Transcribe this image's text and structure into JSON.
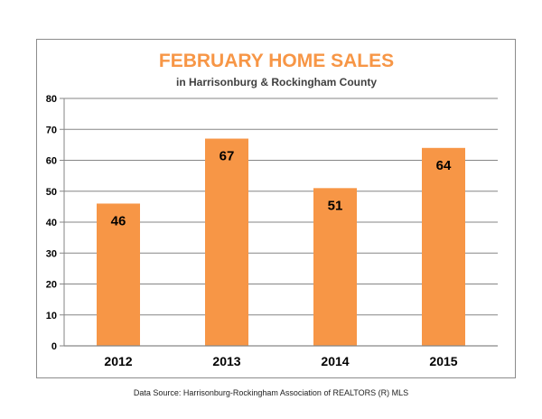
{
  "chart_data": {
    "type": "bar",
    "title": "FEBRUARY HOME SALES",
    "subtitle": "in Harrisonburg & Rockingham County",
    "categories": [
      "2012",
      "2013",
      "2014",
      "2015"
    ],
    "values": [
      46,
      67,
      51,
      64
    ],
    "data_labels": [
      "46",
      "67",
      "51",
      "64"
    ],
    "ylim": [
      0,
      80
    ],
    "yticks": [
      0,
      10,
      20,
      30,
      40,
      50,
      60,
      70,
      80
    ],
    "ytick_labels": [
      "0",
      "10",
      "20",
      "30",
      "40",
      "50",
      "60",
      "70",
      "80"
    ],
    "grid": true,
    "legend": "none",
    "xlabel": "",
    "ylabel": "",
    "colors": {
      "bar": "#f79646",
      "title": "#f79646",
      "subtitle": "#404040",
      "grid": "#868686",
      "text": "#000000"
    }
  },
  "footer": {
    "source": "Data Source: Harrisonburg-Rockingham Association of REALTORS (R) MLS"
  }
}
